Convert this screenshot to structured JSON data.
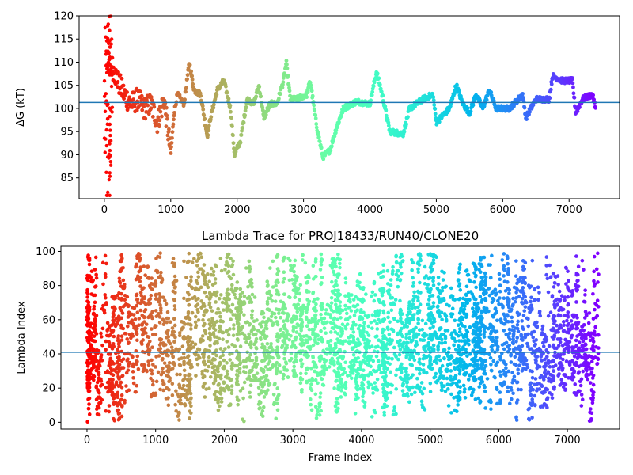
{
  "chart_data": [
    {
      "type": "scatter",
      "title": "",
      "xlabel": "",
      "ylabel": "ΔG (kT)",
      "xlim": [
        -380,
        7760
      ],
      "ylim": [
        80.5,
        120
      ],
      "x_ticks": [
        0,
        1000,
        2000,
        3000,
        4000,
        5000,
        6000,
        7000
      ],
      "x_tick_labels": [
        "0",
        "1000",
        "2000",
        "3000",
        "4000",
        "5000",
        "6000",
        "7000"
      ],
      "y_ticks": [
        85,
        90,
        95,
        100,
        105,
        110,
        115,
        120
      ],
      "y_tick_labels": [
        "85",
        "90",
        "95",
        "100",
        "105",
        "110",
        "115",
        "120"
      ],
      "hline": 101.3,
      "hline_color": "#1f77b4",
      "colormap": "rainbow (red at frame 0 → violet at last frame)",
      "x_max": 7400,
      "trace_knots": [
        [
          30,
          110
        ],
        [
          120,
          109
        ],
        [
          200,
          106
        ],
        [
          300,
          103
        ],
        [
          400,
          101
        ],
        [
          500,
          102
        ],
        [
          600,
          100
        ],
        [
          700,
          101
        ],
        [
          800,
          97
        ],
        [
          900,
          102
        ],
        [
          1000,
          90
        ],
        [
          1050,
          99
        ],
        [
          1100,
          103
        ],
        [
          1200,
          101
        ],
        [
          1280,
          110
        ],
        [
          1350,
          104
        ],
        [
          1450,
          103
        ],
        [
          1550,
          94
        ],
        [
          1600,
          98
        ],
        [
          1700,
          104
        ],
        [
          1800,
          106
        ],
        [
          1900,
          100
        ],
        [
          1960,
          90
        ],
        [
          2050,
          93
        ],
        [
          2150,
          102
        ],
        [
          2250,
          101
        ],
        [
          2330,
          105
        ],
        [
          2400,
          98
        ],
        [
          2500,
          101
        ],
        [
          2600,
          101
        ],
        [
          2700,
          106
        ],
        [
          2740,
          110
        ],
        [
          2800,
          102
        ],
        [
          2900,
          102
        ],
        [
          3050,
          103
        ],
        [
          3100,
          106
        ],
        [
          3200,
          96
        ],
        [
          3290,
          89.5
        ],
        [
          3400,
          91
        ],
        [
          3500,
          96
        ],
        [
          3600,
          100
        ],
        [
          3800,
          101.5
        ],
        [
          4000,
          101
        ],
        [
          4100,
          108
        ],
        [
          4200,
          102
        ],
        [
          4300,
          95
        ],
        [
          4500,
          94.5
        ],
        [
          4600,
          100
        ],
        [
          4800,
          102
        ],
        [
          4950,
          103
        ],
        [
          5000,
          97
        ],
        [
          5200,
          100
        ],
        [
          5300,
          105
        ],
        [
          5400,
          101
        ],
        [
          5500,
          99
        ],
        [
          5600,
          103
        ],
        [
          5700,
          100
        ],
        [
          5800,
          104
        ],
        [
          5900,
          100
        ],
        [
          6100,
          100
        ],
        [
          6300,
          103
        ],
        [
          6350,
          98
        ],
        [
          6500,
          102
        ],
        [
          6700,
          102
        ],
        [
          6750,
          107
        ],
        [
          6900,
          106
        ],
        [
          7050,
          106
        ],
        [
          7100,
          99
        ],
        [
          7200,
          102
        ],
        [
          7350,
          103
        ],
        [
          7400,
          100
        ]
      ]
    },
    {
      "type": "scatter",
      "title": "Lambda Trace for PROJ18433/RUN40/CLONE20",
      "xlabel": "Frame Index",
      "ylabel": "Lambda Index",
      "xlim": [
        -380,
        7760
      ],
      "ylim": [
        -4,
        103
      ],
      "x_ticks": [
        0,
        1000,
        2000,
        3000,
        4000,
        5000,
        6000,
        7000
      ],
      "x_tick_labels": [
        "0",
        "1000",
        "2000",
        "3000",
        "4000",
        "5000",
        "6000",
        "7000"
      ],
      "y_ticks": [
        0,
        20,
        40,
        60,
        80,
        100
      ],
      "y_tick_labels": [
        "0",
        "20",
        "40",
        "60",
        "80",
        "100"
      ],
      "hline": 41,
      "hline_color": "#1f77b4",
      "colormap": "rainbow (red at frame 0 → violet at last frame)",
      "x_max": 7400,
      "lambda_range": [
        0,
        99
      ]
    }
  ]
}
